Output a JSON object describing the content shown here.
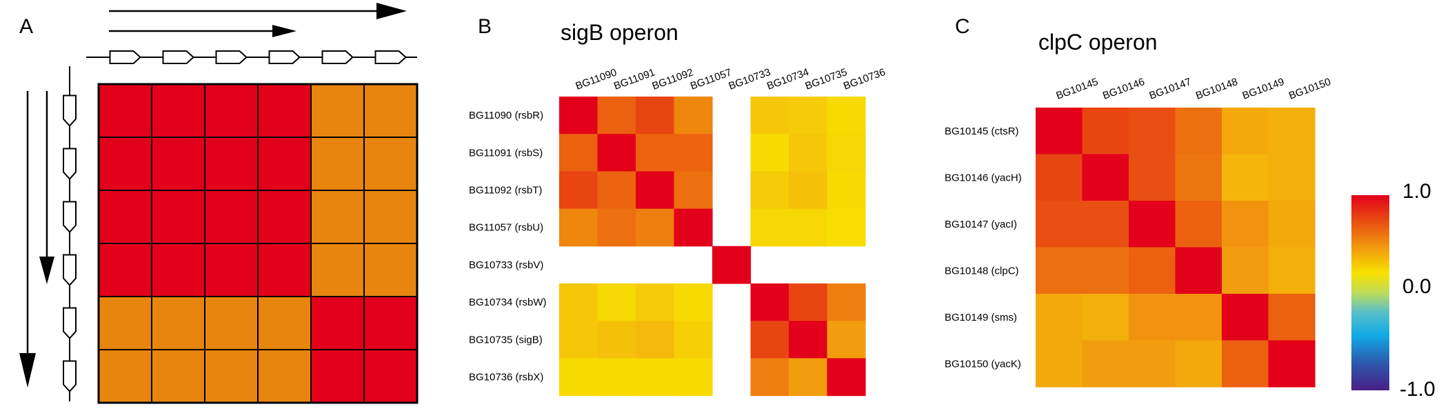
{
  "panels": {
    "a": {
      "letter": "A"
    },
    "b": {
      "letter": "B",
      "title": "sigB operon"
    },
    "c": {
      "letter": "C",
      "title": "clpC operon"
    }
  },
  "colorbar": {
    "max_label": "1.0",
    "mid_label": "0.0",
    "min_label": "-1.0"
  },
  "chart_data": [
    {
      "type": "heatmap",
      "panel": "A",
      "title": "",
      "rows": 6,
      "columns": 6,
      "values": [
        [
          1.0,
          1.0,
          1.0,
          1.0,
          0.6,
          0.6
        ],
        [
          1.0,
          1.0,
          1.0,
          1.0,
          0.6,
          0.6
        ],
        [
          1.0,
          1.0,
          1.0,
          1.0,
          0.6,
          0.6
        ],
        [
          1.0,
          1.0,
          1.0,
          1.0,
          0.6,
          0.6
        ],
        [
          0.6,
          0.6,
          0.6,
          0.6,
          1.0,
          1.0
        ],
        [
          0.6,
          0.6,
          0.6,
          0.6,
          1.0,
          1.0
        ]
      ],
      "colors": {
        "high": "#e2001a",
        "low": "#e7850f",
        "border": "#000000"
      }
    },
    {
      "type": "heatmap",
      "panel": "B",
      "title": "sigB operon",
      "col_labels": [
        "BG11090",
        "BG11091",
        "BG11092",
        "BG11057",
        "BG10733",
        "BG10734",
        "BG10735",
        "BG10736"
      ],
      "row_labels": [
        "BG11090 (rsbR)",
        "BG11091 (rsbS)",
        "BG11092 (rsbT)",
        "BG11057 (rsbU)",
        "BG10733 (rsbV)",
        "BG10734 (rsbW)",
        "BG10735 (sigB)",
        "BG10736 (rsbX)"
      ],
      "values": [
        [
          1.0,
          0.75,
          0.85,
          0.62,
          null,
          0.42,
          0.4,
          0.33
        ],
        [
          0.75,
          1.0,
          0.74,
          0.74,
          null,
          0.33,
          0.42,
          0.35
        ],
        [
          0.85,
          0.74,
          1.0,
          0.7,
          null,
          0.4,
          0.45,
          0.33
        ],
        [
          0.62,
          0.7,
          0.65,
          1.0,
          null,
          0.35,
          0.35,
          0.32
        ],
        [
          null,
          null,
          null,
          null,
          1.0,
          null,
          null,
          null
        ],
        [
          0.42,
          0.34,
          0.4,
          0.33,
          null,
          1.0,
          0.85,
          0.65
        ],
        [
          0.42,
          0.45,
          0.47,
          0.38,
          null,
          0.85,
          1.0,
          0.55
        ],
        [
          0.33,
          0.33,
          0.33,
          0.33,
          null,
          0.65,
          0.55,
          1.0
        ]
      ],
      "color_scale": [
        -1.0,
        1.0
      ]
    },
    {
      "type": "heatmap",
      "panel": "C",
      "title": "clpC operon",
      "col_labels": [
        "BG10145",
        "BG10146",
        "BG10147",
        "BG10148",
        "BG10149",
        "BG10150"
      ],
      "row_labels": [
        "BG10145 (ctsR)",
        "BG10146 (yacH)",
        "BG10147 (yacI)",
        "BG10148 (clpC)",
        "BG10149 (sms)",
        "BG10150 (yacK)"
      ],
      "values": [
        [
          1.0,
          0.85,
          0.82,
          0.7,
          0.52,
          0.5
        ],
        [
          0.85,
          1.0,
          0.82,
          0.68,
          0.48,
          0.5
        ],
        [
          0.82,
          0.82,
          1.0,
          0.75,
          0.58,
          0.52
        ],
        [
          0.7,
          0.7,
          0.75,
          1.0,
          0.55,
          0.5
        ],
        [
          0.52,
          0.5,
          0.58,
          0.58,
          1.0,
          0.75
        ],
        [
          0.52,
          0.55,
          0.55,
          0.52,
          0.75,
          1.0
        ]
      ],
      "color_scale": [
        -1.0,
        1.0
      ]
    }
  ]
}
